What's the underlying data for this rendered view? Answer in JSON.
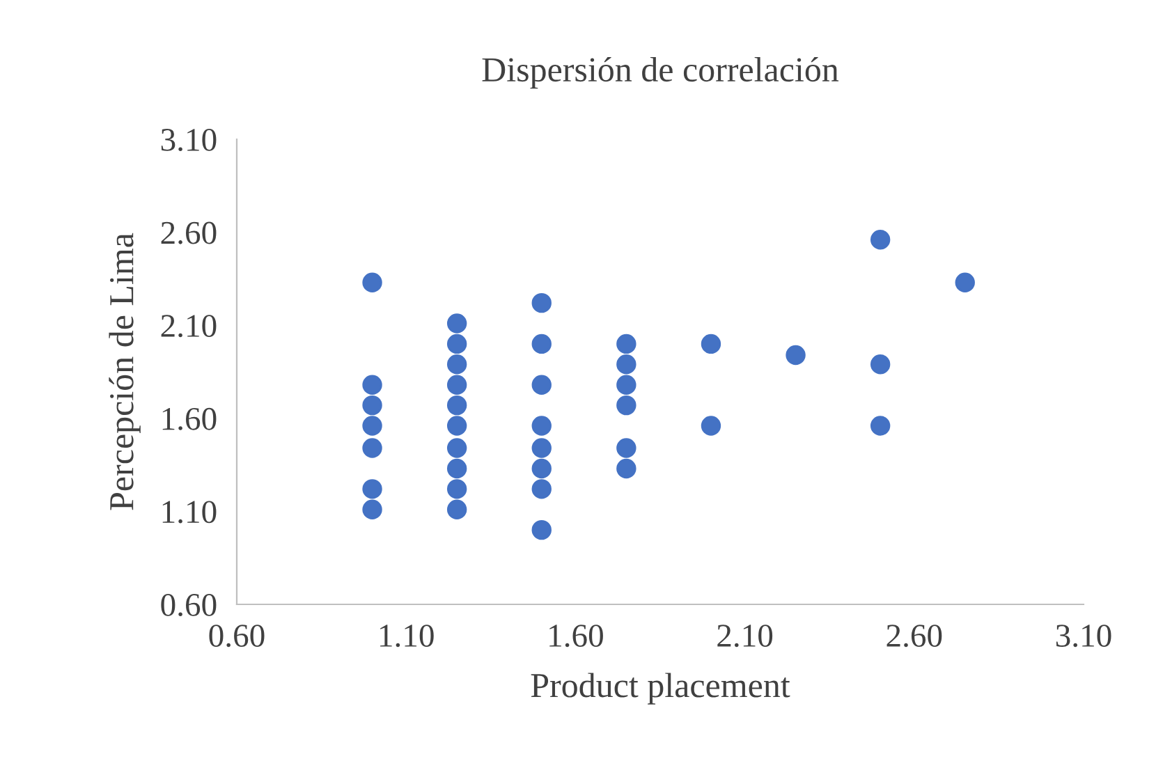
{
  "chart_data": {
    "type": "scatter",
    "title": "Dispersión de correlación",
    "xlabel": "Product placement",
    "ylabel": "Percepción de Lima",
    "xlim": [
      0.6,
      3.1
    ],
    "ylim": [
      0.6,
      3.1
    ],
    "xticks": [
      {
        "value": 0.6,
        "label": "0.60"
      },
      {
        "value": 1.1,
        "label": "1.10"
      },
      {
        "value": 1.6,
        "label": "1.60"
      },
      {
        "value": 2.1,
        "label": "2.10"
      },
      {
        "value": 2.6,
        "label": "2.60"
      },
      {
        "value": 3.1,
        "label": "3.10"
      }
    ],
    "yticks": [
      {
        "value": 0.6,
        "label": "0.60"
      },
      {
        "value": 1.1,
        "label": "1.10"
      },
      {
        "value": 1.6,
        "label": "1.60"
      },
      {
        "value": 2.1,
        "label": "2.10"
      },
      {
        "value": 2.6,
        "label": "2.60"
      },
      {
        "value": 3.1,
        "label": "3.10"
      }
    ],
    "grid": false,
    "marker": "circle",
    "series": [
      {
        "color": "#4472c4",
        "x": [
          1.0,
          1.0,
          1.0,
          1.0,
          1.0,
          1.0,
          1.0,
          1.25,
          1.25,
          1.25,
          1.25,
          1.25,
          1.25,
          1.25,
          1.25,
          1.25,
          1.25,
          1.5,
          1.5,
          1.5,
          1.5,
          1.5,
          1.5,
          1.5,
          1.5,
          1.75,
          1.75,
          1.75,
          1.75,
          1.75,
          1.75,
          2.0,
          2.0,
          2.25,
          2.5,
          2.5,
          2.5,
          2.75
        ],
        "values": [
          2.33,
          1.78,
          1.67,
          1.56,
          1.44,
          1.22,
          1.11,
          2.11,
          2.0,
          1.89,
          1.78,
          1.67,
          1.56,
          1.44,
          1.33,
          1.22,
          1.11,
          2.22,
          2.0,
          1.78,
          1.56,
          1.44,
          1.33,
          1.22,
          1.0,
          2.0,
          1.89,
          1.78,
          1.67,
          1.44,
          1.33,
          2.0,
          1.56,
          1.94,
          2.56,
          1.89,
          1.56,
          2.33
        ]
      }
    ]
  }
}
